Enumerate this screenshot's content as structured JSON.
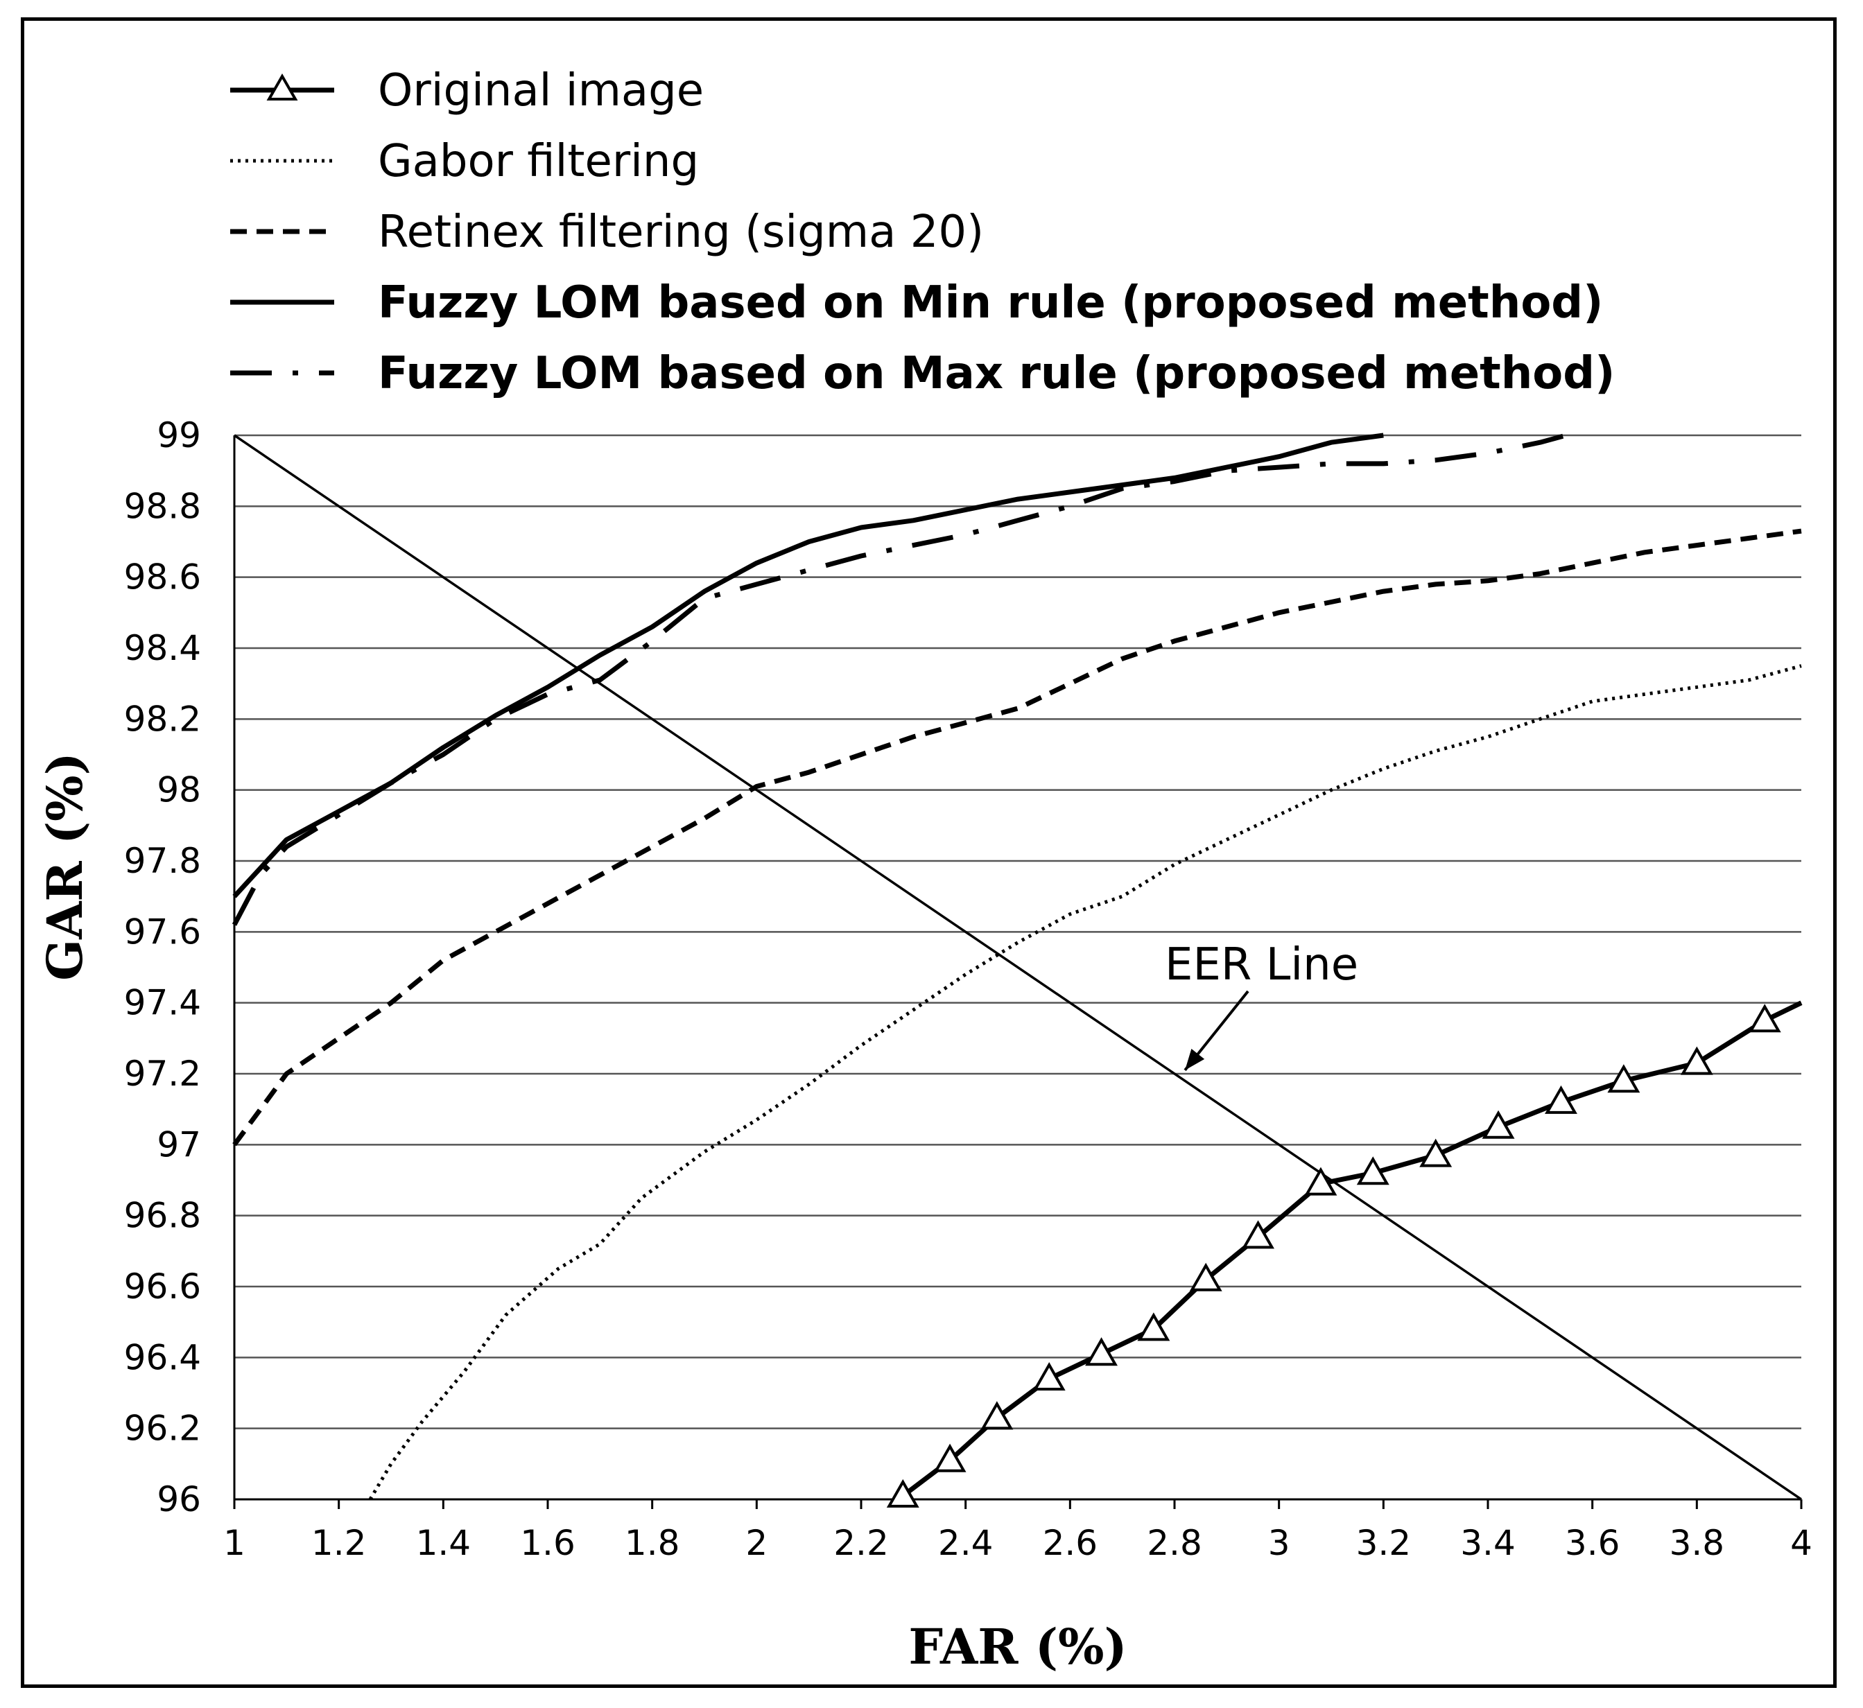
{
  "chart_data": {
    "type": "line",
    "title": "",
    "xlabel": "FAR (%)",
    "ylabel": "GAR (%)",
    "xlim": [
      1,
      4
    ],
    "ylim": [
      96,
      99
    ],
    "x_ticks": [
      "1",
      "1.2",
      "1.4",
      "1.6",
      "1.8",
      "2",
      "2.2",
      "2.4",
      "2.6",
      "2.8",
      "3",
      "3.2",
      "3.4",
      "3.6",
      "3.8",
      "4"
    ],
    "y_ticks": [
      "96",
      "96.2",
      "96.4",
      "96.6",
      "96.8",
      "97",
      "97.2",
      "97.4",
      "97.6",
      "97.8",
      "98",
      "98.2",
      "98.4",
      "98.6",
      "98.8",
      "99"
    ],
    "grid": "horizontal",
    "legend_position": "top-left",
    "series": [
      {
        "name": "Original image",
        "style": "solid-triangle",
        "points": [
          [
            2.28,
            96.01
          ],
          [
            2.37,
            96.11
          ],
          [
            2.46,
            96.23
          ],
          [
            2.56,
            96.34
          ],
          [
            2.66,
            96.41
          ],
          [
            2.76,
            96.48
          ],
          [
            2.86,
            96.62
          ],
          [
            2.96,
            96.74
          ],
          [
            3.08,
            96.89
          ],
          [
            3.18,
            96.92
          ],
          [
            3.3,
            96.97
          ],
          [
            3.42,
            97.05
          ],
          [
            3.54,
            97.12
          ],
          [
            3.66,
            97.18
          ],
          [
            3.8,
            97.23
          ],
          [
            3.93,
            97.35
          ],
          [
            4.0,
            97.4
          ]
        ],
        "markers": [
          [
            2.28,
            96.01
          ],
          [
            2.37,
            96.11
          ],
          [
            2.46,
            96.23
          ],
          [
            2.56,
            96.34
          ],
          [
            2.66,
            96.41
          ],
          [
            2.76,
            96.48
          ],
          [
            2.86,
            96.62
          ],
          [
            2.96,
            96.74
          ],
          [
            3.08,
            96.89
          ],
          [
            3.18,
            96.92
          ],
          [
            3.3,
            96.97
          ],
          [
            3.42,
            97.05
          ],
          [
            3.54,
            97.12
          ],
          [
            3.66,
            97.18
          ],
          [
            3.8,
            97.23
          ],
          [
            3.93,
            97.35
          ]
        ]
      },
      {
        "name": "Gabor filtering",
        "style": "dotted",
        "points": [
          [
            1.26,
            96.0
          ],
          [
            1.3,
            96.1
          ],
          [
            1.36,
            96.22
          ],
          [
            1.44,
            96.36
          ],
          [
            1.52,
            96.52
          ],
          [
            1.62,
            96.65
          ],
          [
            1.7,
            96.72
          ],
          [
            1.78,
            96.85
          ],
          [
            1.9,
            96.98
          ],
          [
            2.0,
            97.07
          ],
          [
            2.1,
            97.17
          ],
          [
            2.2,
            97.28
          ],
          [
            2.3,
            97.38
          ],
          [
            2.4,
            97.48
          ],
          [
            2.5,
            97.57
          ],
          [
            2.6,
            97.65
          ],
          [
            2.7,
            97.7
          ],
          [
            2.8,
            97.79
          ],
          [
            2.9,
            97.86
          ],
          [
            3.0,
            97.93
          ],
          [
            3.1,
            98.0
          ],
          [
            3.2,
            98.06
          ],
          [
            3.3,
            98.11
          ],
          [
            3.4,
            98.15
          ],
          [
            3.5,
            98.2
          ],
          [
            3.6,
            98.25
          ],
          [
            3.7,
            98.27
          ],
          [
            3.8,
            98.29
          ],
          [
            3.9,
            98.31
          ],
          [
            4.0,
            98.35
          ]
        ]
      },
      {
        "name": "Retinex filtering (sigma 20)",
        "style": "dashed",
        "points": [
          [
            1.0,
            97.0
          ],
          [
            1.05,
            97.1
          ],
          [
            1.1,
            97.2
          ],
          [
            1.2,
            97.3
          ],
          [
            1.3,
            97.4
          ],
          [
            1.4,
            97.52
          ],
          [
            1.5,
            97.6
          ],
          [
            1.6,
            97.68
          ],
          [
            1.7,
            97.76
          ],
          [
            1.8,
            97.84
          ],
          [
            1.9,
            97.92
          ],
          [
            2.0,
            98.01
          ],
          [
            2.1,
            98.05
          ],
          [
            2.2,
            98.1
          ],
          [
            2.3,
            98.15
          ],
          [
            2.4,
            98.19
          ],
          [
            2.5,
            98.23
          ],
          [
            2.6,
            98.3
          ],
          [
            2.7,
            98.37
          ],
          [
            2.8,
            98.42
          ],
          [
            2.9,
            98.46
          ],
          [
            3.0,
            98.5
          ],
          [
            3.1,
            98.53
          ],
          [
            3.2,
            98.56
          ],
          [
            3.3,
            98.58
          ],
          [
            3.4,
            98.59
          ],
          [
            3.5,
            98.61
          ],
          [
            3.6,
            98.64
          ],
          [
            3.7,
            98.67
          ],
          [
            3.8,
            98.69
          ],
          [
            3.9,
            98.71
          ],
          [
            4.0,
            98.73
          ]
        ]
      },
      {
        "name": "Fuzzy LOM based on Min rule (proposed method)",
        "style": "solid-bold",
        "points": [
          [
            1.0,
            97.7
          ],
          [
            1.05,
            97.78
          ],
          [
            1.1,
            97.86
          ],
          [
            1.2,
            97.94
          ],
          [
            1.3,
            98.02
          ],
          [
            1.4,
            98.12
          ],
          [
            1.5,
            98.21
          ],
          [
            1.6,
            98.29
          ],
          [
            1.7,
            98.38
          ],
          [
            1.8,
            98.46
          ],
          [
            1.9,
            98.56
          ],
          [
            2.0,
            98.64
          ],
          [
            2.1,
            98.7
          ],
          [
            2.2,
            98.74
          ],
          [
            2.3,
            98.76
          ],
          [
            2.4,
            98.79
          ],
          [
            2.5,
            98.82
          ],
          [
            2.6,
            98.84
          ],
          [
            2.7,
            98.86
          ],
          [
            2.8,
            98.88
          ],
          [
            2.9,
            98.91
          ],
          [
            3.0,
            98.94
          ],
          [
            3.1,
            98.98
          ],
          [
            3.2,
            99.0
          ]
        ]
      },
      {
        "name": "Fuzzy LOM based on Max rule (proposed method)",
        "style": "dash-dot",
        "points": [
          [
            1.0,
            97.62
          ],
          [
            1.05,
            97.76
          ],
          [
            1.1,
            97.84
          ],
          [
            1.2,
            97.93
          ],
          [
            1.3,
            98.02
          ],
          [
            1.4,
            98.1
          ],
          [
            1.5,
            98.2
          ],
          [
            1.6,
            98.27
          ],
          [
            1.7,
            98.31
          ],
          [
            1.8,
            98.42
          ],
          [
            1.9,
            98.54
          ],
          [
            2.0,
            98.58
          ],
          [
            2.1,
            98.62
          ],
          [
            2.2,
            98.66
          ],
          [
            2.3,
            98.69
          ],
          [
            2.4,
            98.72
          ],
          [
            2.5,
            98.76
          ],
          [
            2.6,
            98.8
          ],
          [
            2.7,
            98.85
          ],
          [
            2.8,
            98.87
          ],
          [
            2.9,
            98.9
          ],
          [
            3.0,
            98.91
          ],
          [
            3.1,
            98.92
          ],
          [
            3.2,
            98.92
          ],
          [
            3.3,
            98.93
          ],
          [
            3.4,
            98.95
          ],
          [
            3.5,
            98.98
          ],
          [
            3.55,
            99.0
          ]
        ]
      },
      {
        "name": "EER Line",
        "style": "thin",
        "points": [
          [
            1.0,
            99.0
          ],
          [
            4.0,
            96.0
          ]
        ]
      }
    ],
    "annotations": [
      {
        "text": "EER Line",
        "arrow_to": [
          2.82,
          97.21
        ]
      }
    ]
  }
}
